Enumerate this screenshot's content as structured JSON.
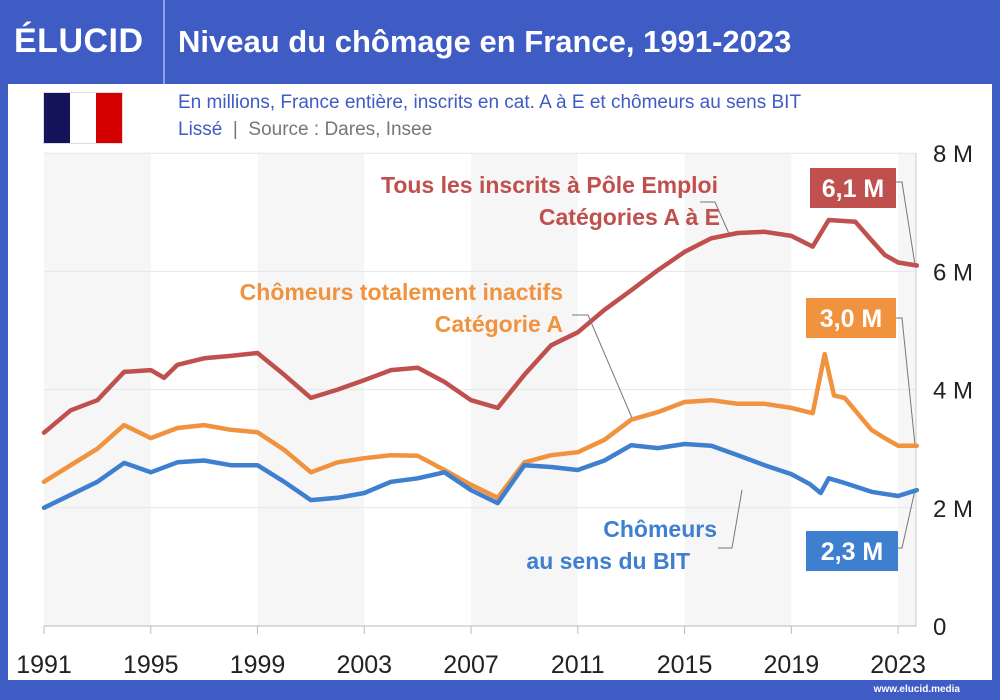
{
  "header": {
    "logo": "ÉLUCID",
    "title": "Niveau du chômage en France, 1991-2023"
  },
  "subtitle": {
    "line1": "En millions, France entière, inscrits en cat. A à E et chômeurs au sens BIT",
    "smoothed": "Lissé",
    "separator": "|",
    "source": "Source : Dares, Insee"
  },
  "footer": {
    "url": "www.elucid.media"
  },
  "colors": {
    "frame": "#3f5bc4",
    "red": "#c0504d",
    "orange": "#f0923e",
    "blue": "#3f7fcf"
  },
  "chart_data": {
    "type": "line",
    "title": "Niveau du chômage en France, 1991-2023",
    "ylabel": "millions",
    "ylim": [
      0,
      8
    ],
    "xlim": [
      1991,
      2023.7
    ],
    "yticks": [
      {
        "v": 0,
        "label": "0"
      },
      {
        "v": 2,
        "label": "2 M"
      },
      {
        "v": 4,
        "label": "4 M"
      },
      {
        "v": 6,
        "label": "6 M"
      },
      {
        "v": 8,
        "label": "8 M"
      }
    ],
    "xticks": [
      {
        "v": 1991,
        "label": "1991"
      },
      {
        "v": 1995,
        "label": "1995"
      },
      {
        "v": 1999,
        "label": "1999"
      },
      {
        "v": 2003,
        "label": "2003"
      },
      {
        "v": 2007,
        "label": "2007"
      },
      {
        "v": 2011,
        "label": "2011"
      },
      {
        "v": 2015,
        "label": "2015"
      },
      {
        "v": 2019,
        "label": "2019"
      },
      {
        "v": 2023,
        "label": "2023"
      }
    ],
    "series": [
      {
        "name": "Tous les inscrits à Pôle Emploi",
        "name2": "Catégories A à E",
        "color": "#c0504d",
        "end_label": "6,1 M",
        "points": [
          [
            1991,
            3.27
          ],
          [
            1992,
            3.65
          ],
          [
            1993,
            3.82
          ],
          [
            1994,
            4.3
          ],
          [
            1995,
            4.33
          ],
          [
            1995.5,
            4.2
          ],
          [
            1996,
            4.42
          ],
          [
            1997,
            4.53
          ],
          [
            1998,
            4.57
          ],
          [
            1999,
            4.62
          ],
          [
            2000,
            4.25
          ],
          [
            2001,
            3.86
          ],
          [
            2002,
            4.0
          ],
          [
            2003,
            4.16
          ],
          [
            2004,
            4.33
          ],
          [
            2005,
            4.37
          ],
          [
            2006,
            4.13
          ],
          [
            2007,
            3.82
          ],
          [
            2008,
            3.69
          ],
          [
            2009,
            4.25
          ],
          [
            2010,
            4.75
          ],
          [
            2011,
            4.97
          ],
          [
            2012,
            5.35
          ],
          [
            2013,
            5.68
          ],
          [
            2014,
            6.02
          ],
          [
            2015,
            6.33
          ],
          [
            2016,
            6.56
          ],
          [
            2017,
            6.65
          ],
          [
            2018,
            6.67
          ],
          [
            2019,
            6.6
          ],
          [
            2019.8,
            6.42
          ],
          [
            2020.4,
            6.87
          ],
          [
            2021.4,
            6.84
          ],
          [
            2022,
            6.53
          ],
          [
            2022.5,
            6.28
          ],
          [
            2023,
            6.15
          ],
          [
            2023.7,
            6.1
          ]
        ]
      },
      {
        "name": "Chômeurs totalement inactifs",
        "name2": "Catégorie A",
        "color": "#f0923e",
        "end_label": "3,0 M",
        "points": [
          [
            1991,
            2.44
          ],
          [
            1992,
            2.72
          ],
          [
            1993,
            3.0
          ],
          [
            1994,
            3.4
          ],
          [
            1995,
            3.18
          ],
          [
            1996,
            3.35
          ],
          [
            1997,
            3.4
          ],
          [
            1998,
            3.32
          ],
          [
            1999,
            3.28
          ],
          [
            2000,
            2.98
          ],
          [
            2001,
            2.6
          ],
          [
            2002,
            2.77
          ],
          [
            2003,
            2.84
          ],
          [
            2004,
            2.89
          ],
          [
            2005,
            2.88
          ],
          [
            2006,
            2.64
          ],
          [
            2007,
            2.39
          ],
          [
            2008,
            2.17
          ],
          [
            2009,
            2.77
          ],
          [
            2010,
            2.89
          ],
          [
            2011,
            2.94
          ],
          [
            2012,
            3.15
          ],
          [
            2013,
            3.49
          ],
          [
            2014,
            3.62
          ],
          [
            2015,
            3.79
          ],
          [
            2016,
            3.82
          ],
          [
            2017,
            3.76
          ],
          [
            2018,
            3.76
          ],
          [
            2019,
            3.69
          ],
          [
            2019.8,
            3.6
          ],
          [
            2020.25,
            4.6
          ],
          [
            2020.6,
            3.9
          ],
          [
            2021,
            3.86
          ],
          [
            2022,
            3.32
          ],
          [
            2022.5,
            3.18
          ],
          [
            2023,
            3.05
          ],
          [
            2023.7,
            3.05
          ]
        ]
      },
      {
        "name": "Chômeurs",
        "name2": "au sens du BIT",
        "color": "#3f7fcf",
        "end_label": "2,3 M",
        "points": [
          [
            1991,
            2.0
          ],
          [
            1992,
            2.22
          ],
          [
            1993,
            2.44
          ],
          [
            1994,
            2.76
          ],
          [
            1995,
            2.6
          ],
          [
            1996,
            2.77
          ],
          [
            1997,
            2.8
          ],
          [
            1998,
            2.72
          ],
          [
            1999,
            2.72
          ],
          [
            2000,
            2.44
          ],
          [
            2001,
            2.13
          ],
          [
            2002,
            2.17
          ],
          [
            2003,
            2.25
          ],
          [
            2004,
            2.44
          ],
          [
            2005,
            2.5
          ],
          [
            2006,
            2.6
          ],
          [
            2007,
            2.3
          ],
          [
            2008,
            2.08
          ],
          [
            2009,
            2.72
          ],
          [
            2010,
            2.69
          ],
          [
            2011,
            2.64
          ],
          [
            2012,
            2.8
          ],
          [
            2013,
            3.06
          ],
          [
            2014,
            3.01
          ],
          [
            2015,
            3.08
          ],
          [
            2016,
            3.05
          ],
          [
            2017,
            2.89
          ],
          [
            2018,
            2.72
          ],
          [
            2019,
            2.57
          ],
          [
            2019.7,
            2.4
          ],
          [
            2020.1,
            2.25
          ],
          [
            2020.4,
            2.5
          ],
          [
            2021,
            2.42
          ],
          [
            2022,
            2.27
          ],
          [
            2023,
            2.2
          ],
          [
            2023.7,
            2.3
          ]
        ]
      }
    ]
  }
}
